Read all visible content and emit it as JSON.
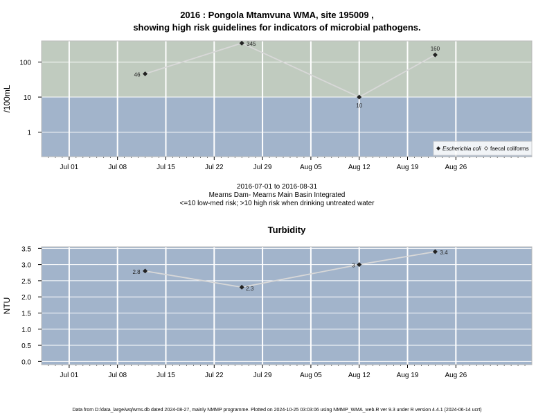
{
  "titles": {
    "line1": "2016 : Pongola Mtamvuna WMA, site 195009 ,",
    "line2": "showing high risk guidelines for indicators of microbial pathogens."
  },
  "subtitle": {
    "range": "2016-07-01 to 2016-08-31",
    "site": "Mearns Dam- Mearns Main Basin Integrated",
    "note": "<=10 low-med risk; >10 high risk when drinking untreated water"
  },
  "footer": "Data from D:/data_large/wq/wms.db dated 2024-08-27, mainly NMMP programme. Plotted on 2024-10-25 03:03:06 using NMMP_WMA_web.R ver 9.3 under R version 4.4.1 (2024-06-14 ucrt)",
  "colors": {
    "high_risk": "#c0cbbf",
    "low_risk": "#a2b4cb",
    "grid": "#ffffff",
    "line": "#d8d8d8",
    "marker": "#222222"
  },
  "chart_data": [
    {
      "type": "line",
      "title": "",
      "ylabel": "/100mL",
      "yscale": "log",
      "ylim": [
        0.2,
        400
      ],
      "yticks": [
        1,
        10,
        100
      ],
      "ytick_labels": [
        "1",
        "10",
        "100"
      ],
      "xlim": [
        "2016-06-27",
        "2016-09-06"
      ],
      "xticks": [
        "2016-07-01",
        "2016-07-08",
        "2016-07-15",
        "2016-07-22",
        "2016-07-29",
        "2016-08-05",
        "2016-08-12",
        "2016-08-19",
        "2016-08-26"
      ],
      "xtick_labels": [
        "Jul 01",
        "Jul 08",
        "Jul 15",
        "Jul 22",
        "Jul 29",
        "Aug 05",
        "Aug 12",
        "Aug 19",
        "Aug 26"
      ],
      "bands": [
        {
          "from": 10,
          "to": 400,
          "label": "high risk"
        },
        {
          "from": 0.2,
          "to": 10,
          "label": "low-med risk"
        }
      ],
      "series": [
        {
          "name": "Escherichia coli",
          "x": [
            "2016-07-12",
            "2016-07-26",
            "2016-08-12",
            "2016-08-23"
          ],
          "y": [
            46,
            345,
            10,
            160
          ],
          "labels": [
            "46",
            "345",
            "10",
            "160"
          ]
        }
      ],
      "legend": {
        "position": "bottom-right",
        "entries": [
          {
            "label": "Escherichia coli",
            "marker": "filled-diamond"
          },
          {
            "label": "faecal coliforms",
            "marker": "open-diamond"
          }
        ]
      }
    },
    {
      "type": "line",
      "title": "Turbidity",
      "ylabel": "NTU",
      "ylim": [
        -0.1,
        3.55
      ],
      "yticks": [
        0,
        0.5,
        1,
        1.5,
        2,
        2.5,
        3,
        3.5
      ],
      "ytick_labels": [
        "0.0",
        "0.5",
        "1.0",
        "1.5",
        "2.0",
        "2.5",
        "3.0",
        "3.5"
      ],
      "xlim": [
        "2016-06-27",
        "2016-09-06"
      ],
      "xticks": [
        "2016-07-01",
        "2016-07-08",
        "2016-07-15",
        "2016-07-22",
        "2016-07-29",
        "2016-08-05",
        "2016-08-12",
        "2016-08-19",
        "2016-08-26"
      ],
      "xtick_labels": [
        "Jul 01",
        "Jul 08",
        "Jul 15",
        "Jul 22",
        "Jul 29",
        "Aug 05",
        "Aug 12",
        "Aug 19",
        "Aug 26"
      ],
      "series": [
        {
          "name": "",
          "x": [
            "2016-07-12",
            "2016-07-26",
            "2016-08-12",
            "2016-08-23"
          ],
          "y": [
            2.8,
            2.3,
            3,
            3.4
          ],
          "labels": [
            "2.8",
            "2.3",
            "3",
            "3.4"
          ]
        }
      ]
    }
  ]
}
